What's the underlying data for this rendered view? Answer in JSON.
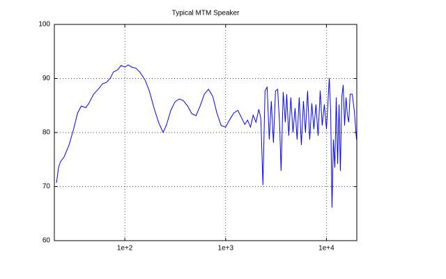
{
  "chart_data": {
    "type": "line",
    "title": "Typical MTM Speaker",
    "x": [
      21,
      22,
      23,
      25,
      28,
      31,
      34,
      37,
      41,
      44,
      49,
      55,
      60,
      66,
      72,
      77,
      85,
      92,
      100,
      108,
      117,
      129,
      142,
      159,
      175,
      195,
      218,
      240,
      260,
      286,
      315,
      347,
      381,
      420,
      461,
      508,
      558,
      615,
      676,
      745,
      819,
      902,
      1000,
      1091,
      1202,
      1321,
      1432,
      1549,
      1652,
      1762,
      1876,
      2000,
      2133,
      2235,
      2344,
      2459,
      2579,
      2708,
      2838,
      2979,
      3125,
      3281,
      3436,
      3548,
      3724,
      3908,
      4036,
      4227,
      4436,
      4656,
      4887,
      5117,
      5370,
      5636,
      5916,
      6194,
      6501,
      6823,
      7161,
      7499,
      7870,
      8260,
      8670,
      9078,
      9528,
      10000,
      10330,
      10666,
      11016,
      11350,
      11720,
      12110,
      12500,
      12910,
      13330,
      13740,
      14190,
      14660,
      15140,
      15630,
      16140,
      16630,
      17180,
      18030,
      18920,
      19860
    ],
    "values": [
      70.7,
      73.5,
      74.6,
      75.5,
      77.7,
      80.6,
      83.6,
      84.9,
      84.6,
      85.4,
      87.1,
      88.1,
      89.0,
      89.3,
      90.1,
      91.2,
      91.6,
      92.4,
      92.1,
      92.5,
      92.1,
      91.9,
      91.1,
      89.7,
      87.7,
      84.5,
      81.7,
      80.0,
      81.5,
      84.1,
      85.7,
      86.2,
      85.9,
      84.9,
      83.5,
      83.1,
      84.9,
      87.1,
      88.0,
      86.7,
      83.6,
      81.3,
      81.0,
      82.3,
      83.6,
      84.1,
      82.8,
      81.5,
      82.3,
      81.0,
      83.2,
      81.9,
      84.3,
      82.6,
      70.3,
      87.7,
      88.4,
      78.7,
      85.8,
      78.1,
      87.7,
      88.0,
      81.3,
      72.9,
      87.5,
      81.9,
      87.1,
      79.4,
      86.5,
      80.0,
      84.5,
      78.7,
      86.5,
      77.7,
      85.8,
      80.0,
      87.7,
      78.7,
      85.4,
      80.6,
      85.2,
      79.4,
      87.7,
      81.3,
      85.2,
      80.6,
      85.2,
      90.1,
      83.9,
      66.1,
      78.7,
      73.5,
      86.5,
      74.2,
      85.2,
      72.9,
      86.5,
      88.8,
      81.3,
      86.5,
      83.2,
      81.9,
      87.1,
      87.1,
      83.9,
      78.7
    ],
    "color": "#0000ff",
    "log_x": true,
    "xlim": [
      20,
      20000
    ],
    "xticks": [
      {
        "value": 100,
        "label": "1e+2"
      },
      {
        "value": 1000,
        "label": "1e+3"
      },
      {
        "value": 10000,
        "label": "1e+4"
      }
    ],
    "ylim": [
      60,
      100
    ],
    "yticks": [
      60,
      70,
      80,
      90,
      100
    ],
    "grid": true
  }
}
